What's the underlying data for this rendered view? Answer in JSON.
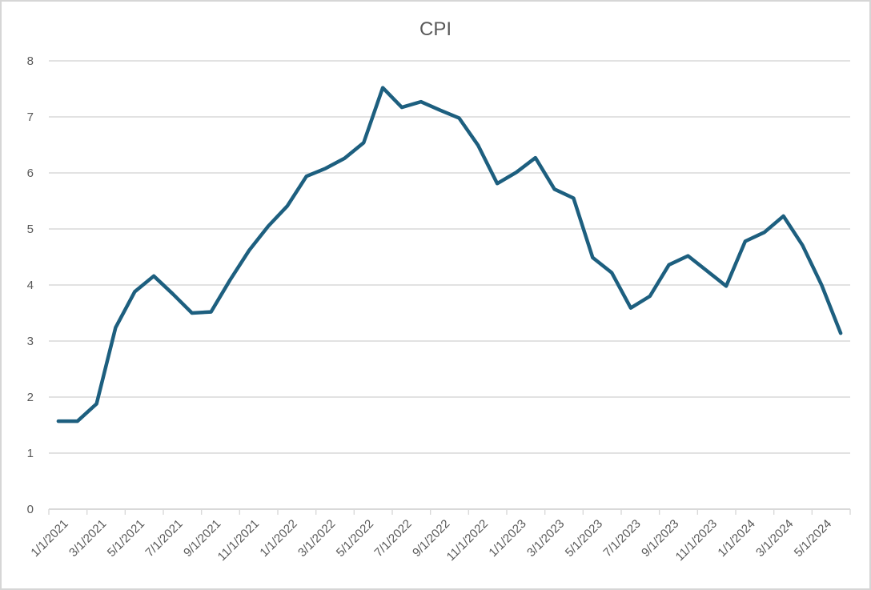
{
  "chart": {
    "title": "CPI",
    "colors": {
      "line": "#1d5f7f",
      "grid": "#d9d9d9",
      "axis": "#d9d9d9",
      "text": "#595959",
      "background": "#ffffff",
      "border": "#d6d6d6"
    }
  },
  "chart_data": {
    "type": "line",
    "title": "CPI",
    "xlabel": "",
    "ylabel": "",
    "ylim": [
      0,
      8
    ],
    "y_ticks": [
      0,
      1,
      2,
      3,
      4,
      5,
      6,
      7,
      8
    ],
    "grid": "horizontal",
    "legend": "none",
    "x": [
      "1/1/2021",
      "2/1/2021",
      "3/1/2021",
      "4/1/2021",
      "5/1/2021",
      "6/1/2021",
      "7/1/2021",
      "8/1/2021",
      "9/1/2021",
      "10/1/2021",
      "11/1/2021",
      "12/1/2021",
      "1/1/2022",
      "2/1/2022",
      "3/1/2022",
      "4/1/2022",
      "5/1/2022",
      "6/1/2022",
      "7/1/2022",
      "8/1/2022",
      "9/1/2022",
      "10/1/2022",
      "11/1/2022",
      "12/1/2022",
      "1/1/2023",
      "2/1/2023",
      "3/1/2023",
      "4/1/2023",
      "5/1/2023",
      "6/1/2023",
      "7/1/2023",
      "8/1/2023",
      "9/1/2023",
      "10/1/2023",
      "11/1/2023",
      "12/1/2023",
      "1/1/2024",
      "2/1/2024",
      "3/1/2024",
      "4/1/2024",
      "5/1/2024",
      "6/1/2024"
    ],
    "values": [
      1.57,
      1.57,
      1.88,
      3.24,
      3.88,
      4.16,
      3.84,
      3.5,
      3.52,
      4.09,
      4.62,
      5.05,
      5.41,
      5.94,
      6.08,
      6.26,
      6.54,
      7.52,
      7.17,
      7.27,
      7.12,
      6.98,
      6.49,
      5.81,
      6.01,
      6.27,
      5.71,
      5.55,
      4.49,
      4.22,
      3.59,
      3.8,
      4.36,
      4.52,
      4.25,
      3.98,
      4.78,
      4.94,
      5.23,
      4.71,
      4.0,
      3.14
    ],
    "x_tick_labels": [
      "1/1/2021",
      "3/1/2021",
      "5/1/2021",
      "7/1/2021",
      "9/1/2021",
      "11/1/2021",
      "1/1/2022",
      "3/1/2022",
      "5/1/2022",
      "7/1/2022",
      "9/1/2022",
      "11/1/2022",
      "1/1/2023",
      "3/1/2023",
      "5/1/2023",
      "7/1/2023",
      "9/1/2023",
      "11/1/2023",
      "1/1/2024",
      "3/1/2024",
      "5/1/2024"
    ]
  }
}
